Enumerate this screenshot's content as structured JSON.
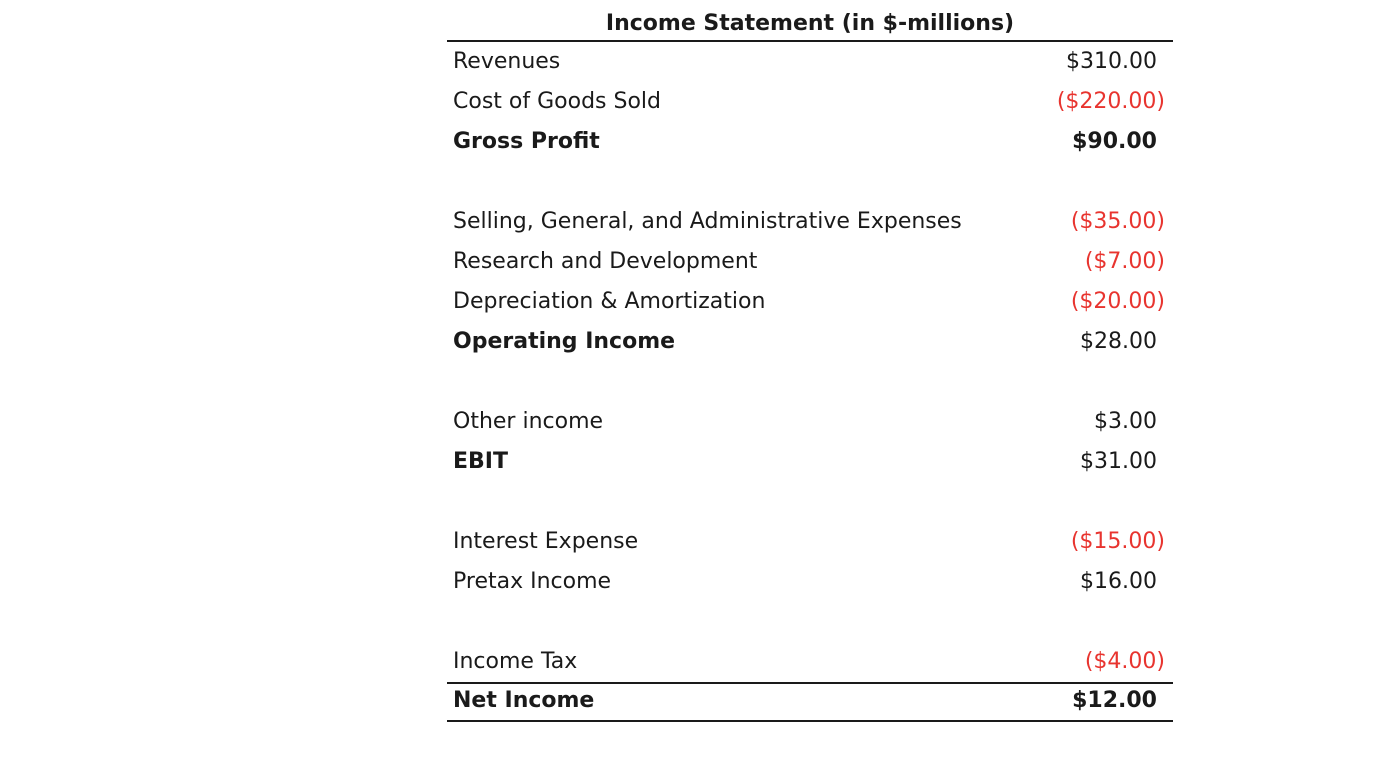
{
  "title": "Income Statement (in $-millions)",
  "rows": [
    {
      "label": "Revenues",
      "value": "$310.00"
    },
    {
      "label": "Cost of Goods Sold",
      "value": "($220.00)"
    },
    {
      "label": "Gross Profit",
      "value": "$90.00"
    },
    {
      "label": "Selling, General, and Administrative Expenses",
      "value": "($35.00)"
    },
    {
      "label": "Research and Development",
      "value": "($7.00)"
    },
    {
      "label": "Depreciation & Amortization",
      "value": "($20.00)"
    },
    {
      "label": "Operating Income",
      "value": "$28.00"
    },
    {
      "label": "Other income",
      "value": "$3.00"
    },
    {
      "label": "EBIT",
      "value": "$31.00"
    },
    {
      "label": "Interest Expense",
      "value": "($15.00)"
    },
    {
      "label": "Pretax Income",
      "value": "$16.00"
    },
    {
      "label": "Income Tax",
      "value": "($4.00)"
    },
    {
      "label": "Net Income",
      "value": "$12.00"
    }
  ],
  "colors": {
    "negative": "#e8342f",
    "text": "#1a1a1a"
  }
}
